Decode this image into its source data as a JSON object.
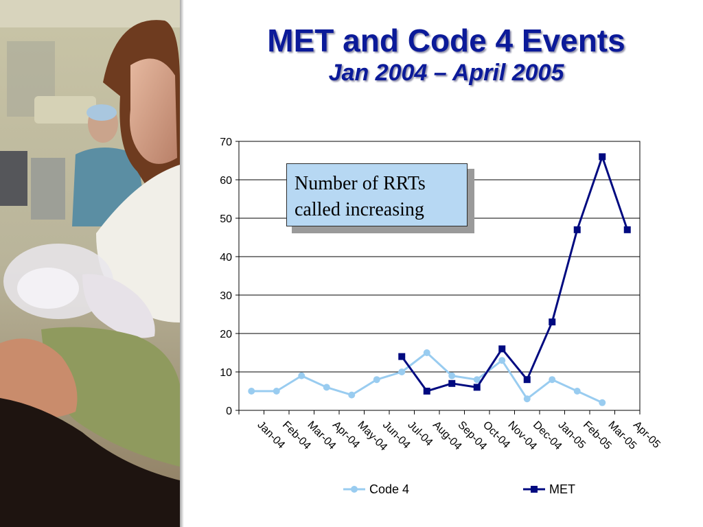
{
  "title": "MET and Code 4 Events",
  "subtitle": "Jan 2004 – April 2005",
  "annotation": {
    "lines": [
      "Number of RRTs",
      "called increasing"
    ]
  },
  "colors": {
    "title": "#0b1a99",
    "code4": "#99ccf0",
    "met": "#000a80",
    "callout_fill": "#b7d8f3"
  },
  "chart_data": {
    "type": "line",
    "categories": [
      "Jan-04",
      "Feb-04",
      "Mar-04",
      "Apr-04",
      "May-04",
      "Jun-04",
      "Jul-04",
      "Aug-04",
      "Sep-04",
      "Oct-04",
      "Nov-04",
      "Dec-04",
      "Jan-05",
      "Feb-05",
      "Mar-05",
      "Apr-05"
    ],
    "series": [
      {
        "name": "Code 4",
        "marker": "circle",
        "values": [
          5,
          5,
          9,
          6,
          4,
          8,
          10,
          15,
          9,
          8,
          13,
          3,
          8,
          5,
          2,
          null
        ]
      },
      {
        "name": "MET",
        "marker": "square",
        "values": [
          null,
          null,
          null,
          null,
          null,
          null,
          14,
          5,
          7,
          6,
          16,
          8,
          23,
          47,
          66,
          47
        ]
      }
    ],
    "ylim": [
      0,
      70
    ],
    "yticks": [
      "0",
      "10",
      "20",
      "30",
      "40",
      "50",
      "60",
      "70"
    ],
    "grid": true,
    "legend": "bottom"
  }
}
